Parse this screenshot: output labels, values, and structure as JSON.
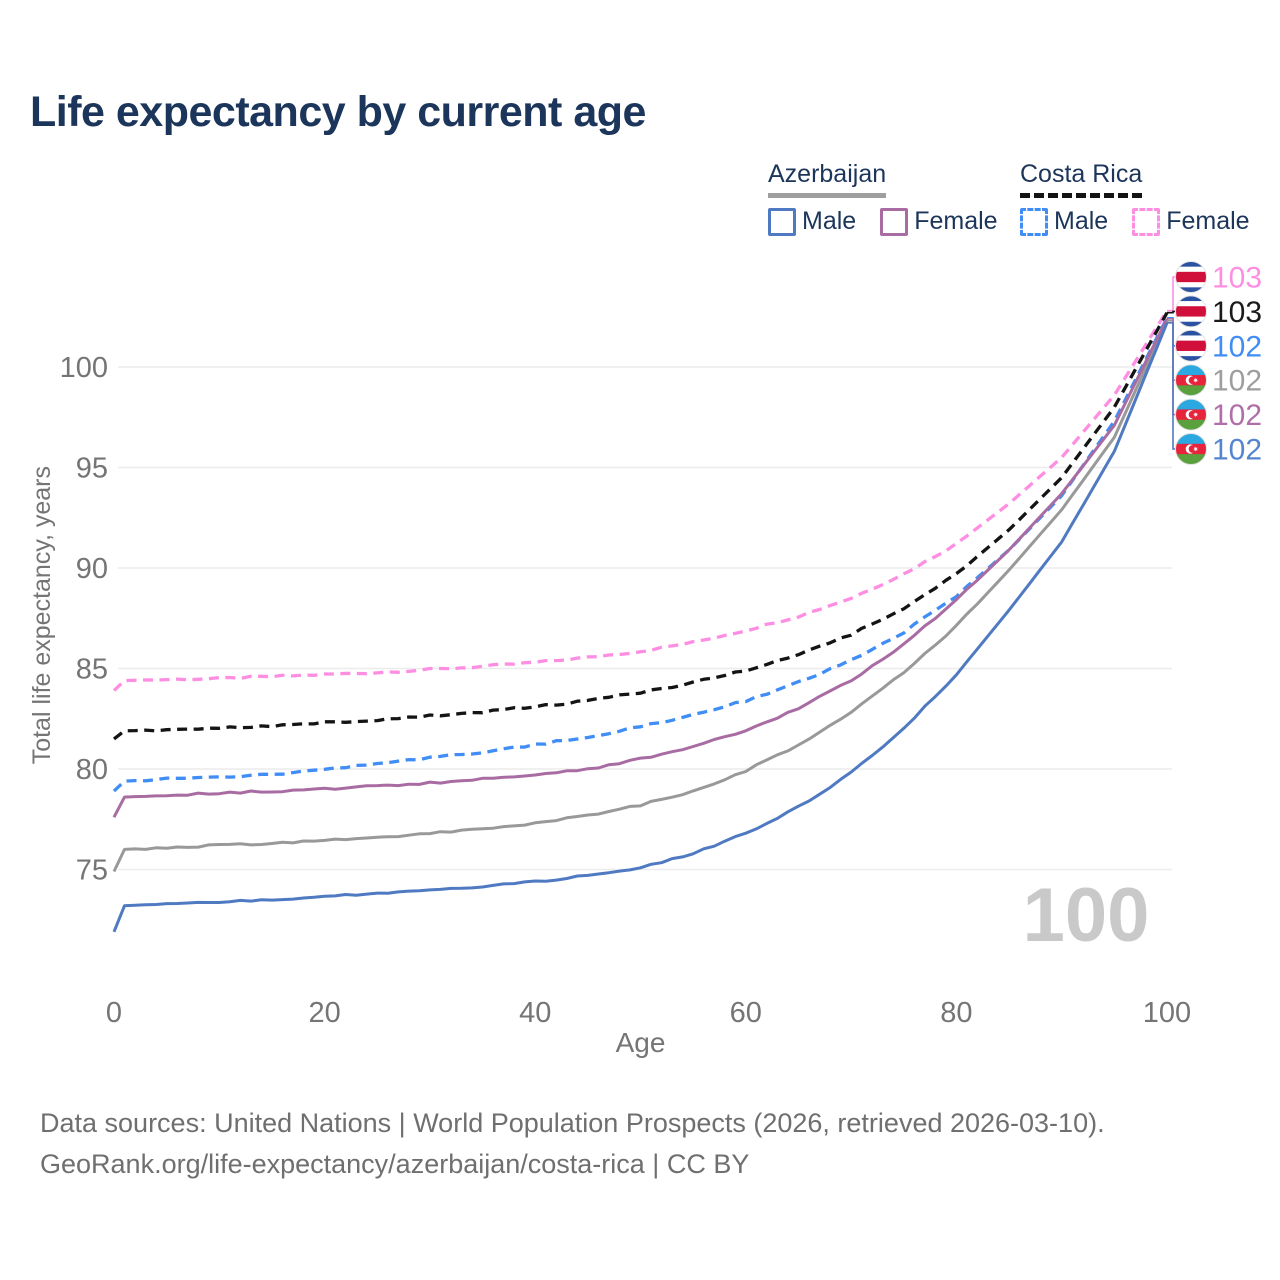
{
  "title": "Life expectancy by current age",
  "legend": {
    "groups": [
      {
        "label": "Azerbaijan",
        "line_style": "solid",
        "underline_color": "#9e9e9e",
        "items": [
          {
            "label": "Male",
            "color": "#4f7ac2"
          },
          {
            "label": "Female",
            "color": "#a86ca2"
          }
        ]
      },
      {
        "label": "Costa Rica",
        "line_style": "dashed",
        "underline_color": "#141414",
        "items": [
          {
            "label": "Male",
            "color": "#3f8df5"
          },
          {
            "label": "Female",
            "color": "#fe8ee2"
          }
        ]
      }
    ]
  },
  "chart_data": {
    "type": "line",
    "title": "Life expectancy by current age",
    "xlabel": "Age",
    "ylabel": "Total life expectancy, years",
    "xlim": [
      0,
      100
    ],
    "ylim": [
      71,
      104
    ],
    "xticks": [
      0,
      20,
      40,
      60,
      80,
      100
    ],
    "yticks": [
      75,
      80,
      85,
      90,
      95,
      100
    ],
    "grid": "horizontal-only",
    "grid_color": "#ececec",
    "watermark_age": "100",
    "x": [
      0,
      1,
      5,
      10,
      15,
      20,
      25,
      30,
      35,
      40,
      45,
      50,
      55,
      60,
      65,
      70,
      75,
      80,
      85,
      90,
      95,
      100
    ],
    "series": [
      {
        "id": "costa-rica-female",
        "name": "Costa Rica Female",
        "country": "Costa Rica",
        "sex": "Female",
        "flag": "costa-rica",
        "color": "#fe8ee2",
        "label_color": "#fe8ee2",
        "dash": "dashed",
        "end_label": "103",
        "values": [
          83.9,
          84.4,
          84.45,
          84.5,
          84.6,
          84.7,
          84.8,
          84.95,
          85.1,
          85.3,
          85.55,
          85.85,
          86.3,
          86.9,
          87.6,
          88.5,
          89.7,
          91.2,
          93.2,
          95.5,
          98.6,
          102.8
        ]
      },
      {
        "id": "costa-rica-both",
        "name": "Costa Rica (both sexes)",
        "country": "Costa Rica",
        "sex": "Both sexes",
        "flag": "costa-rica",
        "color": "#141414",
        "label_color": "#1a1a1a",
        "dash": "dashed",
        "end_label": "103",
        "values": [
          81.5,
          81.9,
          81.95,
          82.05,
          82.15,
          82.3,
          82.45,
          82.65,
          82.85,
          83.1,
          83.4,
          83.8,
          84.3,
          84.9,
          85.7,
          86.7,
          88.0,
          89.7,
          91.9,
          94.5,
          98.0,
          102.7
        ]
      },
      {
        "id": "costa-rica-male",
        "name": "Costa Rica Male",
        "country": "Costa Rica",
        "sex": "Male",
        "flag": "costa-rica",
        "color": "#3f8df5",
        "label_color": "#3f8df5",
        "dash": "dashed",
        "end_label": "102",
        "values": [
          78.9,
          79.4,
          79.5,
          79.6,
          79.75,
          79.95,
          80.25,
          80.55,
          80.85,
          81.2,
          81.6,
          82.1,
          82.7,
          83.4,
          84.3,
          85.4,
          86.8,
          88.6,
          90.9,
          93.6,
          97.3,
          102.45
        ]
      },
      {
        "id": "azerbaijan-both",
        "name": "Azerbaijan (both sexes)",
        "country": "Azerbaijan",
        "sex": "Both sexes",
        "flag": "azerbaijan",
        "color": "#999999",
        "label_color": "#9e9e9e",
        "dash": "solid",
        "end_label": "102",
        "values": [
          74.9,
          76.0,
          76.1,
          76.2,
          76.3,
          76.45,
          76.6,
          76.8,
          77.0,
          77.3,
          77.7,
          78.2,
          78.9,
          79.9,
          81.2,
          82.8,
          84.8,
          87.1,
          89.9,
          92.9,
          96.5,
          102.3
        ]
      },
      {
        "id": "azerbaijan-female",
        "name": "Azerbaijan Female",
        "country": "Azerbaijan",
        "sex": "Female",
        "flag": "azerbaijan",
        "color": "#a86ca2",
        "label_color": "#b06fa8",
        "dash": "solid",
        "end_label": "102",
        "values": [
          77.6,
          78.6,
          78.7,
          78.8,
          78.9,
          79.0,
          79.15,
          79.3,
          79.5,
          79.7,
          80.0,
          80.5,
          81.1,
          81.9,
          83.0,
          84.4,
          86.2,
          88.4,
          90.9,
          93.7,
          97.1,
          102.4
        ]
      },
      {
        "id": "azerbaijan-male",
        "name": "Azerbaijan Male",
        "country": "Azerbaijan",
        "sex": "Male",
        "flag": "azerbaijan",
        "color": "#4f7ac2",
        "label_color": "#5585d0",
        "dash": "solid",
        "end_label": "102",
        "values": [
          71.9,
          73.2,
          73.3,
          73.4,
          73.5,
          73.65,
          73.8,
          73.95,
          74.15,
          74.4,
          74.7,
          75.1,
          75.8,
          76.8,
          78.1,
          79.8,
          82.0,
          84.7,
          87.9,
          91.3,
          95.8,
          102.2
        ]
      }
    ],
    "flag_colors": {
      "costa_rica": {
        "blue": "#2b52a0",
        "white": "#ffffff",
        "red": "#d0103a"
      },
      "azerbaijan": {
        "blue": "#2ba8e0",
        "red": "#e8243d",
        "green": "#5aa03c"
      }
    }
  },
  "footer": {
    "line1": "Data sources: United Nations | World Population Prospects (2026, retrieved 2026-03-10).",
    "line2": "GeoRank.org/life-expectancy/azerbaijan/costa-rica | CC BY"
  }
}
